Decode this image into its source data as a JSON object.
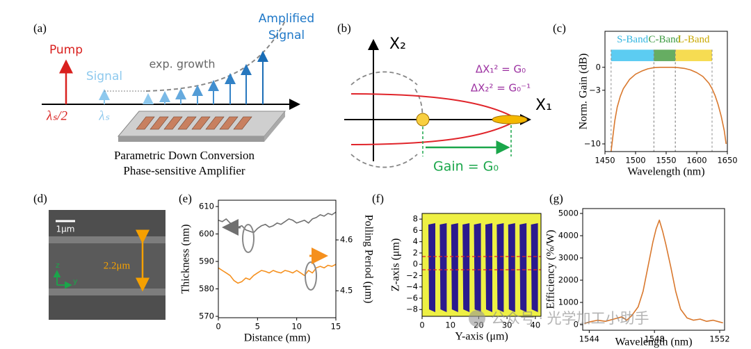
{
  "diagram_a": {
    "label": "(a)",
    "pump": "Pump",
    "signal": "Signal",
    "growth": "exp. growth",
    "amplified": [
      "Amplified",
      "Signal"
    ],
    "pump_wavelength": "λₛ/2",
    "signal_wavelength": "λₛ",
    "caption": [
      "Parametric Down Conversion",
      "Phase-sensitive Amplifier"
    ]
  },
  "diagram_b": {
    "label": "(b)",
    "x2": "X₂",
    "x1": "X₁",
    "dx1": "ΔX₁² = G₀",
    "dx2": "ΔX₂² = G₀⁻¹",
    "gain": "Gain = G₀"
  },
  "diagram_d": {
    "label": "(d)",
    "scale_bar": "1μm",
    "width": "2.2μm",
    "axis_z": "z",
    "axis_y": "y"
  },
  "watermark": "公众号 · 光学加工小助手",
  "chart_data": [
    {
      "type": "line",
      "label": "(c)",
      "x_label": "Wavelength (nm)",
      "y_label": "Norm. Gain (dB)",
      "xlim": [
        1450,
        1650
      ],
      "xticks": [
        1450,
        1500,
        1550,
        1600,
        1650
      ],
      "ylim": [
        -11,
        4.7
      ],
      "yticks": [
        0,
        {
          "value": -3,
          "label": "−3"
        },
        {
          "value": -10,
          "label": "−10"
        }
      ],
      "bands": [
        {
          "name": "S-Band",
          "start": 1460,
          "end": 1530,
          "color": "#5cccf2",
          "text_color": "#33b5e0"
        },
        {
          "name": "C-Band",
          "start": 1530,
          "end": 1565,
          "color": "#66ad62",
          "text_color": "#3c9a40"
        },
        {
          "name": "L-Band",
          "start": 1565,
          "end": 1625,
          "color": "#f6dc52",
          "text_color": "#c9a800"
        }
      ],
      "band_ylim": [
        0.8,
        2.3
      ],
      "x": [
        1460,
        1463,
        1466,
        1470,
        1475,
        1480,
        1490,
        1500,
        1510,
        1520,
        1530,
        1540,
        1550,
        1560,
        1570,
        1580,
        1590,
        1600,
        1610,
        1620,
        1625,
        1630,
        1635,
        1640,
        1645,
        1648
      ],
      "series": [
        {
          "color": "#d9782d",
          "values": [
            -11,
            -9,
            -7,
            -5.2,
            -3.8,
            -2.8,
            -1.6,
            -0.9,
            -0.5,
            -0.2,
            -0.05,
            0,
            0,
            0,
            -0.05,
            -0.15,
            -0.35,
            -0.7,
            -1.2,
            -2.1,
            -2.8,
            -3.7,
            -4.9,
            -6.4,
            -8.3,
            -10
          ]
        }
      ]
    },
    {
      "type": "line",
      "label": "(e)",
      "x_label": "Distance (mm)",
      "y_label": "Thickness (nm)",
      "y2_label": "Polling Period (μm)",
      "xlim": [
        0,
        15
      ],
      "xticks": [
        0,
        5,
        10,
        15
      ],
      "ylim": [
        569.5,
        612.3
      ],
      "yticks": [
        570,
        580,
        590,
        600,
        610
      ],
      "y2lim": [
        4.447,
        4.678
      ],
      "y2ticks": [
        4.5,
        4.6
      ],
      "x": [
        0,
        0.5,
        1,
        1.5,
        2,
        2.5,
        3,
        3.5,
        4,
        4.5,
        5,
        5.5,
        6,
        6.5,
        7,
        7.5,
        8,
        8.5,
        9,
        9.5,
        10,
        10.5,
        11,
        11.5,
        12,
        12.5,
        13,
        13.5,
        14,
        14.5,
        15
      ],
      "series": [
        {
          "color": "#707070",
          "values": [
            605,
            604.5,
            605.5,
            604,
            603.5,
            602.5,
            603,
            601.5,
            601,
            600.5,
            602,
            603,
            603.5,
            602.5,
            603,
            604,
            603.5,
            604.5,
            605.5,
            605,
            604,
            604.5,
            605,
            604,
            605.5,
            606,
            607,
            606.5,
            607.5,
            607,
            608
          ]
        },
        {
          "color": "#f5901e",
          "axis": "y2",
          "values": [
            4.545,
            4.54,
            4.535,
            4.53,
            4.52,
            4.515,
            4.518,
            4.525,
            4.522,
            4.53,
            4.535,
            4.54,
            4.538,
            4.535,
            4.54,
            4.537,
            4.535,
            4.54,
            4.538,
            4.535,
            4.54,
            4.535,
            4.53,
            4.54,
            4.535,
            4.545,
            4.548,
            4.545,
            4.55,
            4.548,
            4.552
          ]
        }
      ]
    },
    {
      "type": "image",
      "label": "(f)",
      "x_label": "Y-axis (μm)",
      "y_label": "Z-axis (μm)",
      "xlim": [
        0,
        42
      ],
      "xticks": [
        0,
        10,
        20,
        30,
        40
      ],
      "ylim": [
        -9.2,
        9
      ],
      "yticks": [
        {
          "value": -8,
          "label": "−8"
        },
        {
          "value": -6,
          "label": "−6"
        },
        {
          "value": -4,
          "label": "−4"
        },
        {
          "value": -2,
          "label": "−2"
        },
        0,
        2,
        4,
        6,
        8
      ]
    },
    {
      "type": "line",
      "label": "(g)",
      "x_label": "Wavelength (nm)",
      "y_label": "Efficiency (%/W)",
      "xlim": [
        1543.6,
        1552.3
      ],
      "xticks": [
        1544,
        1548,
        1552
      ],
      "ylim": [
        -250,
        5220
      ],
      "yticks": [
        0,
        1000,
        2000,
        3000,
        4000,
        5000
      ],
      "x": [
        1543.7,
        1544,
        1544.5,
        1545,
        1545.5,
        1546,
        1546.3,
        1546.6,
        1547,
        1547.3,
        1547.6,
        1547.9,
        1548.1,
        1548.3,
        1548.5,
        1548.7,
        1549,
        1549.3,
        1549.6,
        1550,
        1550.4,
        1550.8,
        1551.2,
        1551.6,
        1552,
        1552.2
      ],
      "series": [
        {
          "color": "#d9782d",
          "values": [
            50,
            120,
            200,
            150,
            250,
            350,
            200,
            400,
            800,
            1500,
            2600,
            3700,
            4300,
            4700,
            4200,
            3600,
            2600,
            1500,
            700,
            300,
            200,
            250,
            150,
            200,
            120,
            80
          ]
        }
      ]
    }
  ]
}
